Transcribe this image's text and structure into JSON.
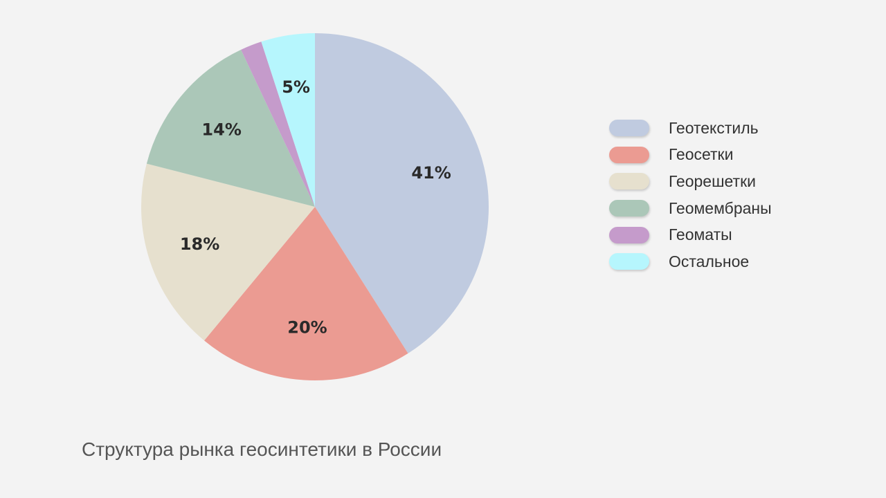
{
  "chart_data": {
    "type": "pie",
    "title": "Структура рынка геосинтетики в России",
    "slices": [
      {
        "name": "Геотекстиль",
        "value": 41,
        "label": "41%",
        "color": "#c0cbe0"
      },
      {
        "name": "Геосетки",
        "value": 20,
        "label": "20%",
        "color": "#eb9b92"
      },
      {
        "name": "Георешетки",
        "value": 18,
        "label": "18%",
        "color": "#e6e0ce"
      },
      {
        "name": "Геомембраны",
        "value": 14,
        "label": "14%",
        "color": "#abc7b8"
      },
      {
        "name": "Геоматы",
        "value": 2,
        "label": "",
        "color": "#c59bcb"
      },
      {
        "name": "Остальное",
        "value": 5,
        "label": "5%",
        "color": "#b6f6fd"
      }
    ],
    "start_angle_deg": 0,
    "direction": "clockwise",
    "legend_position": "right"
  }
}
